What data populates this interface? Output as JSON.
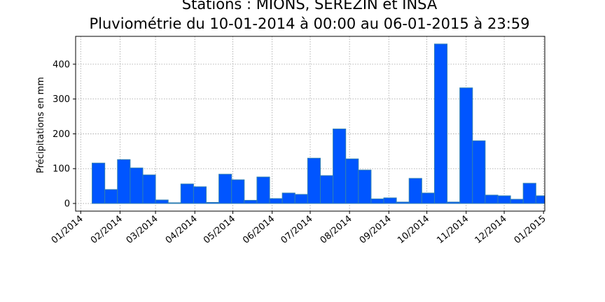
{
  "chart_data": {
    "type": "bar",
    "title_line1": "Stations : MIONS, SEREZIN et INSA",
    "title_line2": "Pluviométrie du 10-01-2014 à 00:00 au 06-01-2015 à 23:59",
    "xlabel": "",
    "ylabel": "Précipitations en mm",
    "ylim": [
      -22,
      480
    ],
    "yticks": [
      0,
      100,
      200,
      300,
      400
    ],
    "xlim": [
      "2013-12-28",
      "2015-01-02"
    ],
    "xticks": [
      {
        "date": "2014-01-01",
        "label": "01/2014"
      },
      {
        "date": "2014-02-01",
        "label": "02/2014"
      },
      {
        "date": "2014-03-01",
        "label": "03/2014"
      },
      {
        "date": "2014-04-01",
        "label": "04/2014"
      },
      {
        "date": "2014-05-01",
        "label": "05/2014"
      },
      {
        "date": "2014-06-01",
        "label": "06/2014"
      },
      {
        "date": "2014-07-01",
        "label": "07/2014"
      },
      {
        "date": "2014-08-01",
        "label": "08/2014"
      },
      {
        "date": "2014-09-01",
        "label": "09/2014"
      },
      {
        "date": "2014-10-01",
        "label": "10/2014"
      },
      {
        "date": "2014-11-01",
        "label": "11/2014"
      },
      {
        "date": "2014-12-01",
        "label": "12/2014"
      },
      {
        "date": "2015-01-01",
        "label": "01/2015"
      }
    ],
    "grid": true,
    "bar_color": "#0055ff",
    "bar_edge_color": "#2e7fb3",
    "bars": [
      {
        "start": "2014-01-10",
        "end": "2014-01-20",
        "value": 116
      },
      {
        "start": "2014-01-20",
        "end": "2014-01-30",
        "value": 40
      },
      {
        "start": "2014-01-30",
        "end": "2014-02-09",
        "value": 126
      },
      {
        "start": "2014-02-09",
        "end": "2014-02-19",
        "value": 102
      },
      {
        "start": "2014-02-19",
        "end": "2014-03-01",
        "value": 82
      },
      {
        "start": "2014-03-01",
        "end": "2014-03-11",
        "value": 10
      },
      {
        "start": "2014-03-11",
        "end": "2014-03-21",
        "value": 2
      },
      {
        "start": "2014-03-21",
        "end": "2014-03-31",
        "value": 56
      },
      {
        "start": "2014-03-31",
        "end": "2014-04-10",
        "value": 48
      },
      {
        "start": "2014-04-10",
        "end": "2014-04-20",
        "value": 3
      },
      {
        "start": "2014-04-20",
        "end": "2014-04-30",
        "value": 84
      },
      {
        "start": "2014-04-30",
        "end": "2014-05-10",
        "value": 68
      },
      {
        "start": "2014-05-10",
        "end": "2014-05-20",
        "value": 9
      },
      {
        "start": "2014-05-20",
        "end": "2014-05-30",
        "value": 76
      },
      {
        "start": "2014-05-30",
        "end": "2014-06-09",
        "value": 14
      },
      {
        "start": "2014-06-09",
        "end": "2014-06-19",
        "value": 30
      },
      {
        "start": "2014-06-19",
        "end": "2014-06-29",
        "value": 26
      },
      {
        "start": "2014-06-29",
        "end": "2014-07-09",
        "value": 130
      },
      {
        "start": "2014-07-09",
        "end": "2014-07-19",
        "value": 80
      },
      {
        "start": "2014-07-19",
        "end": "2014-07-29",
        "value": 214
      },
      {
        "start": "2014-07-29",
        "end": "2014-08-08",
        "value": 128
      },
      {
        "start": "2014-08-08",
        "end": "2014-08-18",
        "value": 96
      },
      {
        "start": "2014-08-18",
        "end": "2014-08-28",
        "value": 13
      },
      {
        "start": "2014-08-28",
        "end": "2014-09-07",
        "value": 16
      },
      {
        "start": "2014-09-07",
        "end": "2014-09-17",
        "value": 4
      },
      {
        "start": "2014-09-17",
        "end": "2014-09-27",
        "value": 72
      },
      {
        "start": "2014-09-27",
        "end": "2014-10-07",
        "value": 30
      },
      {
        "start": "2014-10-07",
        "end": "2014-10-17",
        "value": 458
      },
      {
        "start": "2014-10-17",
        "end": "2014-10-27",
        "value": 4
      },
      {
        "start": "2014-10-27",
        "end": "2014-11-06",
        "value": 332
      },
      {
        "start": "2014-11-06",
        "end": "2014-11-16",
        "value": 180
      },
      {
        "start": "2014-11-16",
        "end": "2014-11-26",
        "value": 24
      },
      {
        "start": "2014-11-26",
        "end": "2014-12-06",
        "value": 22
      },
      {
        "start": "2014-12-06",
        "end": "2014-12-16",
        "value": 12
      },
      {
        "start": "2014-12-16",
        "end": "2014-12-26",
        "value": 58
      },
      {
        "start": "2014-12-26",
        "end": "2015-01-05",
        "value": 22
      }
    ]
  }
}
